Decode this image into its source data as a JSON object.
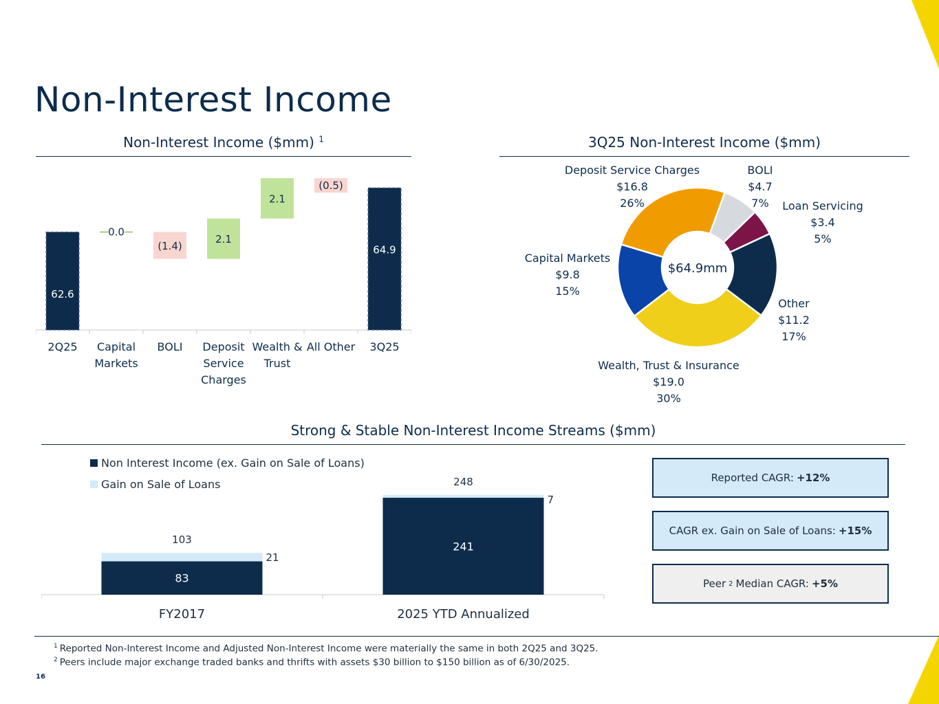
{
  "page": {
    "title": "Non-Interest Income",
    "page_number": "16",
    "accent_color": "#f5d500"
  },
  "colors": {
    "navy": "#0d2c4c",
    "increase_green": "#bfe39a",
    "decrease_pink": "#f9d5cf",
    "light_blue": "#d4eaf8",
    "gray_box": "#efefef"
  },
  "waterfall": {
    "heading": "Non-Interest Income ($mm)",
    "heading_footnote": "1"
  },
  "donut": {
    "heading": "3Q25 Non-Interest Income ($mm)",
    "center_label": "$64.9mm"
  },
  "streams": {
    "heading": "Strong & Stable Non-Interest Income Streams ($mm)"
  },
  "cagr": {
    "reported_label": "Reported CAGR:",
    "reported_value": "+12%",
    "ex_gain_label": "CAGR ex. Gain on Sale of Loans:",
    "ex_gain_value": "+15%",
    "peer_label_pre": "Peer",
    "peer_sup": "2",
    "peer_label_post": "Median CAGR:",
    "peer_value": "+5%"
  },
  "footnotes": [
    {
      "mark": "1",
      "text": "Reported Non-Interest Income and Adjusted Non-Interest Income were materially the same in both 2Q25 and 3Q25."
    },
    {
      "mark": "2",
      "text": "Peers include major exchange traded banks and thrifts with assets $30 billion to $150 billion as of 6/30/2025."
    }
  ],
  "chart_data": [
    {
      "type": "bar",
      "subtype": "waterfall",
      "title": "Non-Interest Income ($mm)",
      "categories": [
        [
          "2Q25"
        ],
        [
          "Capital",
          "Markets"
        ],
        [
          "BOLI"
        ],
        [
          "Deposit",
          "Service",
          "Charges"
        ],
        [
          "Wealth &",
          "Trust"
        ],
        [
          "All Other"
        ],
        [
          "3Q25"
        ]
      ],
      "values": [
        62.6,
        0.0,
        -1.4,
        2.1,
        2.1,
        -0.5,
        64.9
      ],
      "labels": [
        "62.6",
        "0.0",
        "(1.4)",
        "2.1",
        "2.1",
        "(0.5)",
        "64.9"
      ],
      "kinds": [
        "total",
        "change",
        "change",
        "change",
        "change",
        "change",
        "total"
      ]
    },
    {
      "type": "pie",
      "subtype": "donut",
      "title": "3Q25 Non-Interest Income ($mm)",
      "total": 64.9,
      "slices": [
        {
          "name": "BOLI",
          "value": 4.7,
          "value_label": "$4.7",
          "percent": "7%",
          "color": "#d6dadf"
        },
        {
          "name": "Loan Servicing",
          "value": 3.4,
          "value_label": "$3.4",
          "percent": "5%",
          "color": "#7d1448"
        },
        {
          "name": "Other",
          "value": 11.2,
          "value_label": "$11.2",
          "percent": "17%",
          "color": "#0d2c4c"
        },
        {
          "name": "Wealth, Trust & Insurance",
          "value": 19.0,
          "value_label": "$19.0",
          "percent": "30%",
          "color": "#f0cf1b"
        },
        {
          "name": "Capital Markets",
          "value": 9.8,
          "value_label": "$9.8",
          "percent": "15%",
          "color": "#0b44a8"
        },
        {
          "name": "Deposit Service Charges",
          "value": 16.8,
          "value_label": "$16.8",
          "percent": "26%",
          "color": "#f09c00"
        }
      ]
    },
    {
      "type": "bar",
      "subtype": "stacked",
      "title": "Strong & Stable Non-Interest Income Streams ($mm)",
      "categories": [
        "FY2017",
        "2025 YTD Annualized"
      ],
      "series": [
        {
          "name": "Non Interest Income (ex. Gain on Sale of Loans)",
          "values": [
            83,
            241
          ],
          "color": "#0d2c4c"
        },
        {
          "name": "Gain on Sale of Loans",
          "values": [
            21,
            7
          ],
          "color": "#d4eaf8"
        }
      ],
      "totals": [
        103,
        248
      ],
      "legend": "top-left"
    }
  ]
}
